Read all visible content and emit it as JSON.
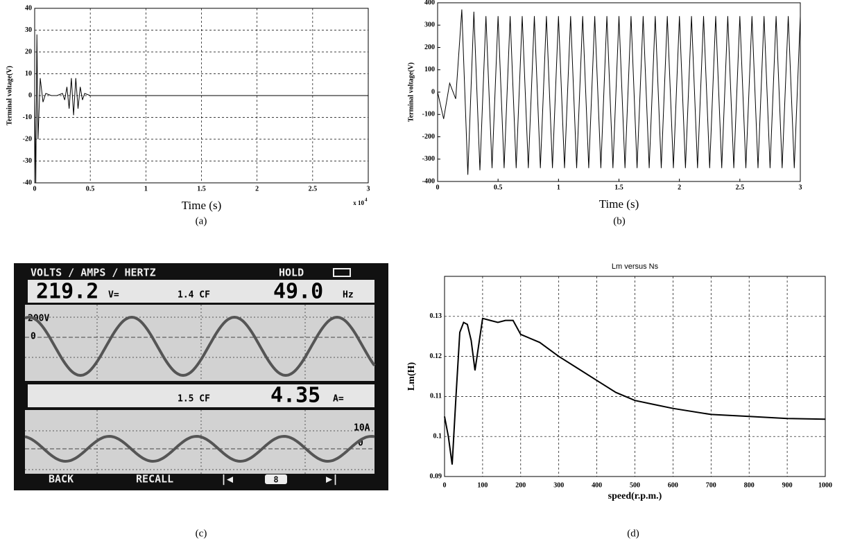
{
  "chart_data": [
    {
      "type": "line",
      "ylabel": "Terminal voltage(V)",
      "xlabel": "Time (s)",
      "x_scale_label": "x 10",
      "x_scale_exponent": "4",
      "caption": "(a)",
      "color": "#000000",
      "grid": true,
      "x": [
        0,
        0.01,
        0.02,
        0.03,
        0.05,
        0.075,
        0.1,
        0.15,
        0.2,
        0.25,
        0.27,
        0.29,
        0.31,
        0.33,
        0.35,
        0.37,
        0.39,
        0.41,
        0.43,
        0.45,
        0.5,
        1,
        2,
        3
      ],
      "values": [
        0,
        -40,
        28,
        -20,
        8,
        -3,
        1,
        0,
        0,
        1,
        -2,
        4,
        -6,
        8,
        -9,
        8,
        -6,
        4,
        -2,
        1,
        0,
        0,
        0,
        0
      ],
      "xlim": [
        0,
        3
      ],
      "xticks": [
        0,
        0.5,
        1,
        1.5,
        2,
        2.5,
        3
      ],
      "ylim": [
        -40,
        40
      ],
      "yticks": [
        -40,
        -30,
        -20,
        -10,
        0,
        10,
        20,
        30,
        40
      ]
    },
    {
      "type": "line",
      "ylabel": "Terminal voltage(V)",
      "xlabel": "Time (s)",
      "caption": "(b)",
      "color": "#000000",
      "grid": false,
      "x": [
        0,
        0.05,
        0.1,
        0.15,
        0.2,
        0.25,
        0.3,
        0.35,
        0.4,
        0.45,
        0.5,
        0.55,
        0.6,
        0.65,
        0.7,
        0.75,
        0.8,
        0.85,
        0.9,
        0.95,
        1,
        1.05,
        1.1,
        1.15,
        1.2,
        1.25,
        1.3,
        1.35,
        1.4,
        1.45,
        1.5,
        1.55,
        1.6,
        1.65,
        1.7,
        1.75,
        1.8,
        1.85,
        1.9,
        1.95,
        2,
        2.05,
        2.1,
        2.15,
        2.2,
        2.25,
        2.3,
        2.35,
        2.4,
        2.45,
        2.5,
        2.55,
        2.6,
        2.65,
        2.7,
        2.75,
        2.8,
        2.85,
        2.9,
        2.95,
        3
      ],
      "values": [
        0,
        -120,
        40,
        -30,
        370,
        -370,
        360,
        -350,
        340,
        -340,
        340,
        -340,
        340,
        -340,
        340,
        -340,
        340,
        -340,
        340,
        -340,
        340,
        -340,
        340,
        -340,
        340,
        -340,
        340,
        -340,
        340,
        -340,
        340,
        -340,
        340,
        -340,
        340,
        -340,
        340,
        -340,
        340,
        -340,
        340,
        -340,
        340,
        -340,
        340,
        -340,
        340,
        -340,
        340,
        -340,
        340,
        -340,
        340,
        -340,
        340,
        -340,
        340,
        -340,
        340,
        -340,
        340
      ],
      "xlim": [
        0,
        3
      ],
      "xticks": [
        0,
        0.5,
        1,
        1.5,
        2,
        2.5,
        3
      ],
      "ylim": [
        -400,
        400
      ],
      "yticks": [
        -400,
        -300,
        -200,
        -100,
        0,
        100,
        200,
        300,
        400
      ]
    },
    {
      "type": "line",
      "title": "Lm versus Ns",
      "ylabel": "Lm(H)",
      "xlabel": "speed(r.p.m.)",
      "caption": "(d)",
      "color": "#000000",
      "grid": true,
      "x": [
        0,
        10,
        20,
        30,
        40,
        50,
        60,
        70,
        80,
        90,
        100,
        120,
        140,
        160,
        180,
        200,
        250,
        300,
        350,
        400,
        450,
        500,
        550,
        600,
        700,
        800,
        900,
        1000
      ],
      "values": [
        0.105,
        0.1,
        0.093,
        0.11,
        0.126,
        0.1285,
        0.128,
        0.124,
        0.1165,
        0.123,
        0.1295,
        0.129,
        0.1285,
        0.129,
        0.129,
        0.1255,
        0.1235,
        0.12,
        0.117,
        0.114,
        0.111,
        0.109,
        0.108,
        0.107,
        0.1055,
        0.105,
        0.1045,
        0.1043
      ],
      "xlim": [
        0,
        1000
      ],
      "xticks": [
        0,
        100,
        200,
        300,
        400,
        500,
        600,
        700,
        800,
        900,
        1000
      ],
      "ylim": [
        0.09,
        0.14
      ],
      "yticks": [
        0.09,
        0.1,
        0.11,
        0.12,
        0.13
      ]
    }
  ],
  "meter_display": {
    "header": "VOLTS / AMPS / HERTZ",
    "hold": "HOLD",
    "voltage": "219.2",
    "voltage_unit": "V=",
    "voltage_cf": "1.4 CF",
    "frequency": "49.0",
    "frequency_unit": "Hz",
    "voltage_scale": "200V",
    "voltage_zero": "0",
    "current_cf": "1.5 CF",
    "current": "4.35",
    "current_unit": "A=",
    "current_scale": "10A",
    "current_zero": "0",
    "back": "BACK",
    "recall": "RECALL",
    "page": "8",
    "caption": "(c)"
  }
}
